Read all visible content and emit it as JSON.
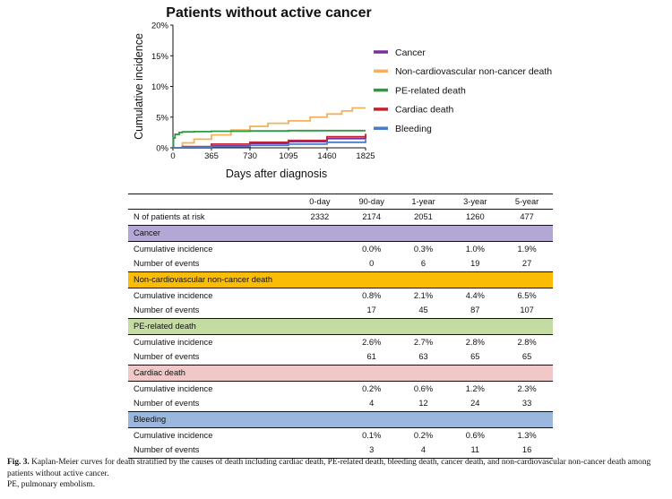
{
  "chart_data": {
    "type": "line",
    "title": "Patients without active cancer",
    "xlabel": "Days after diagnosis",
    "ylabel": "Cumulative incidence",
    "xlim": [
      0,
      1825
    ],
    "ylim": [
      0,
      20
    ],
    "x_ticks": [
      0,
      365,
      730,
      1095,
      1460,
      1825
    ],
    "y_ticks": [
      0,
      5,
      10,
      15,
      20
    ],
    "y_tick_labels": [
      "0%",
      "5%",
      "10%",
      "15%",
      "20%"
    ],
    "legend_position": "right",
    "series": [
      {
        "name": "Cancer",
        "color": "#7a2f9b",
        "x": [
          0,
          90,
          365,
          730,
          1095,
          1460,
          1825
        ],
        "y": [
          0,
          0.0,
          0.3,
          0.7,
          1.0,
          1.5,
          1.9
        ]
      },
      {
        "name": "Non-cardiovascular non-cancer death",
        "color": "#f2b15a",
        "x": [
          0,
          90,
          200,
          365,
          550,
          730,
          900,
          1095,
          1300,
          1460,
          1600,
          1700,
          1825
        ],
        "y": [
          0,
          0.8,
          1.4,
          2.1,
          2.9,
          3.5,
          4.0,
          4.4,
          5.0,
          5.5,
          6.0,
          6.5,
          6.5
        ]
      },
      {
        "name": "PE-related death",
        "color": "#2c9a3e",
        "x": [
          0,
          5,
          20,
          60,
          90,
          200,
          365,
          730,
          1095,
          1460,
          1825
        ],
        "y": [
          0,
          1.6,
          2.2,
          2.5,
          2.6,
          2.65,
          2.7,
          2.75,
          2.8,
          2.8,
          2.8
        ]
      },
      {
        "name": "Cardiac death",
        "color": "#c0232b",
        "x": [
          0,
          90,
          365,
          730,
          1095,
          1460,
          1825
        ],
        "y": [
          0,
          0.2,
          0.6,
          0.9,
          1.2,
          1.8,
          2.3
        ]
      },
      {
        "name": "Bleeding",
        "color": "#4a7cc0",
        "x": [
          0,
          90,
          365,
          730,
          1095,
          1460,
          1825
        ],
        "y": [
          0,
          0.1,
          0.2,
          0.4,
          0.6,
          0.9,
          1.3
        ]
      }
    ]
  },
  "table": {
    "headers": [
      "",
      "0-day",
      "90-day",
      "1-year",
      "3-year",
      "5-year"
    ],
    "at_risk": {
      "label": "N of patients at risk",
      "values": [
        "2332",
        "2174",
        "2051",
        "1260",
        "477"
      ]
    },
    "groups": [
      {
        "name": "Cancer",
        "color": "#b4a7d6",
        "rows": [
          {
            "label": "Cumulative incidence",
            "values": [
              "",
              "0.0%",
              "0.3%",
              "1.0%",
              "1.9%"
            ]
          },
          {
            "label": "Number of events",
            "values": [
              "",
              "0",
              "6",
              "19",
              "27"
            ]
          }
        ]
      },
      {
        "name": "Non-cardiovascular non-cancer death",
        "color": "#fbbc05",
        "rows": [
          {
            "label": "Cumulative incidence",
            "values": [
              "",
              "0.8%",
              "2.1%",
              "4.4%",
              "6.5%"
            ]
          },
          {
            "label": "Number of events",
            "values": [
              "",
              "17",
              "45",
              "87",
              "107"
            ]
          }
        ]
      },
      {
        "name": "PE-related death",
        "color": "#c4dba3",
        "rows": [
          {
            "label": "Cumulative incidence",
            "values": [
              "",
              "2.6%",
              "2.7%",
              "2.8%",
              "2.8%"
            ]
          },
          {
            "label": "Number of events",
            "values": [
              "",
              "61",
              "63",
              "65",
              "65"
            ]
          }
        ]
      },
      {
        "name": "Cardiac death",
        "color": "#f0c8c8",
        "rows": [
          {
            "label": "Cumulative incidence",
            "values": [
              "",
              "0.2%",
              "0.6%",
              "1.2%",
              "2.3%"
            ]
          },
          {
            "label": "Number of events",
            "values": [
              "",
              "4",
              "12",
              "24",
              "33"
            ]
          }
        ]
      },
      {
        "name": "Bleeding",
        "color": "#9bb7de",
        "rows": [
          {
            "label": "Cumulative incidence",
            "values": [
              "",
              "0.1%",
              "0.2%",
              "0.6%",
              "1.3%"
            ]
          },
          {
            "label": "Number of events",
            "values": [
              "",
              "3",
              "4",
              "11",
              "16"
            ]
          }
        ]
      }
    ]
  },
  "caption": {
    "fig_label": "Fig. 3.",
    "text": "Kaplan-Meier curves for death stratified by the causes of death including cardiac death, PE-related death, bleeding death, cancer death, and non-cardiovascular non-cancer death among patients without active cancer.",
    "abbrev": "PE, pulmonary embolism."
  }
}
